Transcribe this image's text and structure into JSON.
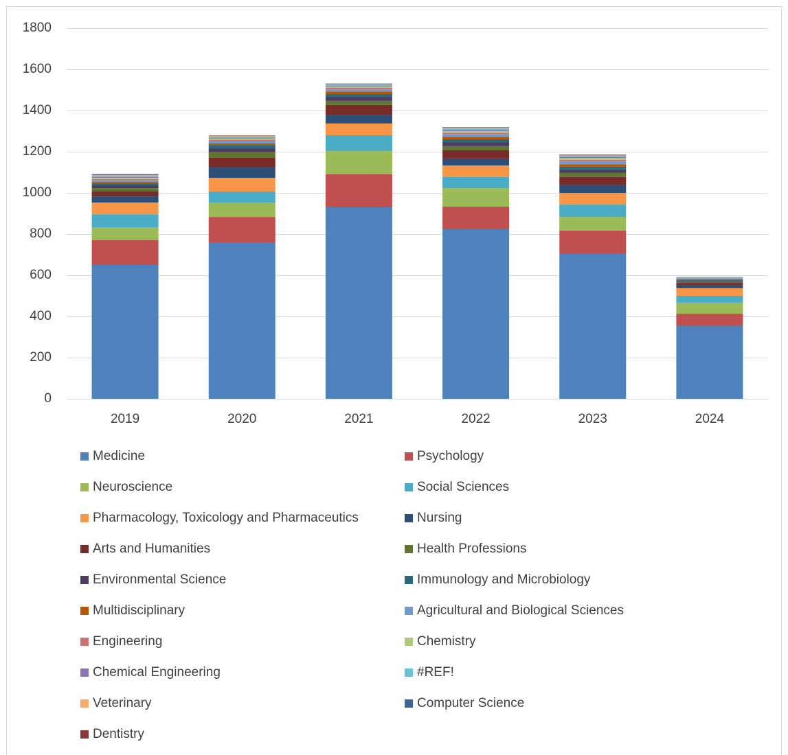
{
  "chart_data": {
    "type": "stacked_bar",
    "categories": [
      "2019",
      "2020",
      "2021",
      "2022",
      "2023",
      "2024"
    ],
    "ylim": [
      0,
      1800
    ],
    "yticks": [
      0,
      200,
      400,
      600,
      800,
      1000,
      1200,
      1400,
      1600,
      1800
    ],
    "grid": true,
    "legend": "bottom",
    "series": [
      {
        "name": "Medicine",
        "color": "#4f81bd",
        "values": [
          650,
          760,
          930,
          825,
          705,
          355
        ]
      },
      {
        "name": "Psychology",
        "color": "#c0504d",
        "values": [
          120,
          123,
          160,
          108,
          112,
          58
        ]
      },
      {
        "name": "Neuroscience",
        "color": "#9bbb59",
        "values": [
          63,
          70,
          113,
          90,
          66,
          54
        ]
      },
      {
        "name": "Social Sciences",
        "color": "#4bacc6",
        "values": [
          63,
          54,
          77,
          54,
          60,
          33
        ]
      },
      {
        "name": "Pharmacology, Toxicology and Pharmaceutics",
        "color": "#f79646",
        "values": [
          57,
          66,
          57,
          56,
          57,
          37
        ]
      },
      {
        "name": "Nursing",
        "color": "#2c4d75",
        "values": [
          30,
          50,
          40,
          34,
          37,
          16
        ]
      },
      {
        "name": "Arts and Humanities",
        "color": "#772c2a",
        "values": [
          25,
          47,
          50,
          40,
          40,
          10
        ]
      },
      {
        "name": "Health Professions",
        "color": "#5f7530",
        "values": [
          15,
          30,
          20,
          20,
          20,
          6
        ]
      },
      {
        "name": "Environmental Science",
        "color": "#4d3b62",
        "values": [
          12,
          15,
          18,
          18,
          15,
          5
        ]
      },
      {
        "name": "Immunology and Microbiology",
        "color": "#276a7c",
        "values": [
          10,
          15,
          15,
          15,
          15,
          4
        ]
      },
      {
        "name": "Multidisciplinary",
        "color": "#b65708",
        "values": [
          8,
          10,
          12,
          12,
          12,
          3
        ]
      },
      {
        "name": "Agricultural and Biological Sciences",
        "color": "#729aca",
        "values": [
          8,
          10,
          10,
          12,
          12,
          2
        ]
      },
      {
        "name": "Engineering",
        "color": "#cd7371",
        "values": [
          6,
          8,
          8,
          8,
          10,
          2
        ]
      },
      {
        "name": "Chemistry",
        "color": "#afc97a",
        "values": [
          6,
          6,
          6,
          8,
          8,
          1
        ]
      },
      {
        "name": "Chemical Engineering",
        "color": "#8f76b3",
        "values": [
          5,
          5,
          5,
          6,
          6,
          1
        ]
      },
      {
        "name": "#REF!",
        "color": "#67c2d8",
        "values": [
          4,
          4,
          4,
          5,
          4,
          1
        ]
      },
      {
        "name": "Veterinary",
        "color": "#f9ab6b",
        "values": [
          4,
          3,
          3,
          4,
          3,
          1
        ]
      },
      {
        "name": "Computer Science",
        "color": "#3a6595",
        "values": [
          3,
          2,
          2,
          3,
          2,
          1
        ]
      },
      {
        "name": "Dentistry",
        "color": "#8c3836",
        "values": [
          2,
          1,
          1,
          1,
          2,
          1
        ]
      }
    ]
  }
}
